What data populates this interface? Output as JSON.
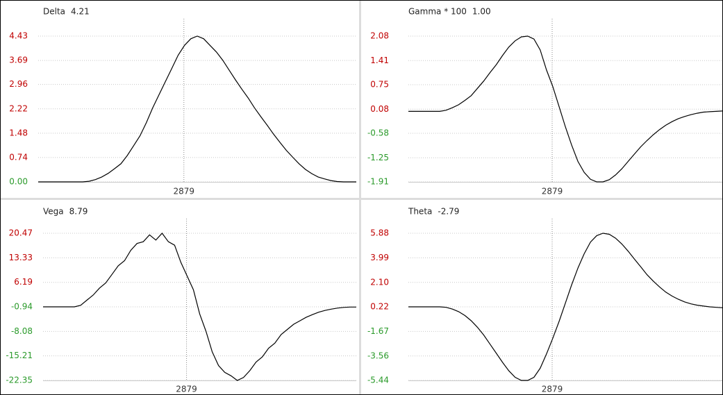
{
  "chart_data": [
    {
      "type": "line",
      "title": "Delta",
      "readout": "4.21",
      "marker_x": 2879,
      "color": "#000000",
      "tick_colors": {
        "positive": "#c00000",
        "nonpositive": "#2a9a2a"
      },
      "grid": true,
      "xlim": [
        2650,
        3150
      ],
      "ylim": [
        0,
        4.43
      ],
      "yticks": [
        {
          "value": 0,
          "label": "0.00"
        },
        0.74,
        1.48,
        2.22,
        2.96,
        3.69,
        4.43
      ],
      "x": [
        2650,
        2660,
        2670,
        2680,
        2690,
        2700,
        2710,
        2720,
        2730,
        2740,
        2750,
        2760,
        2770,
        2780,
        2790,
        2800,
        2810,
        2820,
        2830,
        2840,
        2850,
        2860,
        2870,
        2880,
        2890,
        2900,
        2910,
        2920,
        2930,
        2940,
        2950,
        2960,
        2970,
        2980,
        2990,
        3000,
        3010,
        3020,
        3030,
        3040,
        3050,
        3060,
        3070,
        3080,
        3090,
        3100,
        3110,
        3120,
        3130,
        3140,
        3150
      ],
      "values": [
        0,
        0,
        0,
        0,
        0,
        0,
        0,
        0,
        0.02,
        0.07,
        0.15,
        0.26,
        0.4,
        0.55,
        0.8,
        1.1,
        1.4,
        1.8,
        2.25,
        2.65,
        3.05,
        3.45,
        3.85,
        4.15,
        4.35,
        4.43,
        4.35,
        4.15,
        3.95,
        3.7,
        3.4,
        3.1,
        2.82,
        2.55,
        2.25,
        1.98,
        1.72,
        1.45,
        1.2,
        0.96,
        0.75,
        0.55,
        0.38,
        0.25,
        0.15,
        0.09,
        0.04,
        0.01,
        0,
        0,
        0
      ]
    },
    {
      "type": "line",
      "title": "Gamma * 100",
      "readout": "1.00",
      "marker_x": 2879,
      "color": "#000000",
      "tick_colors": {
        "positive": "#c00000",
        "nonpositive": "#2a9a2a"
      },
      "grid": true,
      "xlim": [
        2650,
        3150
      ],
      "ylim": [
        -1.91,
        2.08
      ],
      "yticks": [
        -1.91,
        -1.25,
        -0.58,
        0.08,
        0.75,
        1.41,
        2.08
      ],
      "x": [
        2650,
        2660,
        2670,
        2680,
        2690,
        2700,
        2710,
        2720,
        2730,
        2740,
        2750,
        2760,
        2770,
        2780,
        2790,
        2800,
        2810,
        2820,
        2830,
        2840,
        2850,
        2860,
        2870,
        2880,
        2890,
        2900,
        2910,
        2920,
        2930,
        2940,
        2950,
        2960,
        2970,
        2980,
        2990,
        3000,
        3010,
        3020,
        3030,
        3040,
        3050,
        3060,
        3070,
        3080,
        3090,
        3100,
        3110,
        3120,
        3130,
        3140,
        3150
      ],
      "values": [
        0.02,
        0.02,
        0.02,
        0.02,
        0.02,
        0.02,
        0.05,
        0.12,
        0.2,
        0.32,
        0.45,
        0.65,
        0.85,
        1.08,
        1.3,
        1.55,
        1.78,
        1.95,
        2.06,
        2.08,
        2.0,
        1.7,
        1.15,
        0.7,
        0.15,
        -0.4,
        -0.9,
        -1.35,
        -1.65,
        -1.84,
        -1.91,
        -1.91,
        -1.85,
        -1.72,
        -1.55,
        -1.35,
        -1.15,
        -0.95,
        -0.78,
        -0.62,
        -0.48,
        -0.36,
        -0.26,
        -0.18,
        -0.12,
        -0.07,
        -0.03,
        0,
        0.01,
        0.02,
        0.03
      ]
    },
    {
      "type": "line",
      "title": "Vega",
      "readout": "8.79",
      "marker_x": 2879,
      "color": "#000000",
      "tick_colors": {
        "positive": "#c00000",
        "nonpositive": "#2a9a2a"
      },
      "grid": true,
      "xlim": [
        2650,
        3150
      ],
      "ylim": [
        -22.35,
        20.47
      ],
      "yticks": [
        -22.35,
        -15.21,
        -8.08,
        -0.94,
        6.19,
        13.33,
        20.47
      ],
      "x": [
        2650,
        2660,
        2670,
        2680,
        2690,
        2700,
        2710,
        2720,
        2730,
        2740,
        2750,
        2760,
        2770,
        2780,
        2790,
        2800,
        2810,
        2820,
        2830,
        2840,
        2850,
        2860,
        2870,
        2880,
        2890,
        2900,
        2910,
        2920,
        2930,
        2940,
        2950,
        2960,
        2970,
        2980,
        2990,
        3000,
        3010,
        3020,
        3030,
        3040,
        3050,
        3060,
        3070,
        3080,
        3090,
        3100,
        3110,
        3120,
        3130,
        3140,
        3150
      ],
      "values": [
        -0.94,
        -0.94,
        -0.94,
        -0.94,
        -0.94,
        -0.94,
        -0.5,
        1.0,
        2.5,
        4.5,
        6.0,
        8.5,
        11.0,
        12.5,
        15.5,
        17.5,
        18.0,
        20.0,
        18.5,
        20.47,
        18.0,
        17.0,
        12.0,
        8.0,
        4.0,
        -3.0,
        -8.0,
        -14.0,
        -18.0,
        -20.0,
        -21.0,
        -22.35,
        -21.5,
        -19.5,
        -17.0,
        -15.5,
        -13.0,
        -11.5,
        -9.0,
        -7.5,
        -6.0,
        -5.0,
        -4.0,
        -3.2,
        -2.5,
        -2.0,
        -1.6,
        -1.3,
        -1.1,
        -1.0,
        -1.0
      ]
    },
    {
      "type": "line",
      "title": "Theta",
      "readout": "-2.79",
      "marker_x": 2879,
      "color": "#000000",
      "tick_colors": {
        "positive": "#c00000",
        "nonpositive": "#2a9a2a"
      },
      "grid": true,
      "xlim": [
        2650,
        3150
      ],
      "ylim": [
        -5.44,
        5.88
      ],
      "yticks": [
        -5.44,
        -3.56,
        -1.67,
        0.22,
        {
          "value": 2.1,
          "label": "2.10"
        },
        3.99,
        5.88
      ],
      "x": [
        2650,
        2660,
        2670,
        2680,
        2690,
        2700,
        2710,
        2720,
        2730,
        2740,
        2750,
        2760,
        2770,
        2780,
        2790,
        2800,
        2810,
        2820,
        2830,
        2840,
        2850,
        2860,
        2870,
        2880,
        2890,
        2900,
        2910,
        2920,
        2930,
        2940,
        2950,
        2960,
        2970,
        2980,
        2990,
        3000,
        3010,
        3020,
        3030,
        3040,
        3050,
        3060,
        3070,
        3080,
        3090,
        3100,
        3110,
        3120,
        3130,
        3140,
        3150
      ],
      "values": [
        0.22,
        0.22,
        0.22,
        0.22,
        0.22,
        0.22,
        0.18,
        0.05,
        -0.15,
        -0.45,
        -0.85,
        -1.35,
        -1.95,
        -2.65,
        -3.35,
        -4.05,
        -4.7,
        -5.2,
        -5.44,
        -5.44,
        -5.2,
        -4.5,
        -3.4,
        -2.2,
        -0.9,
        0.5,
        1.9,
        3.2,
        4.3,
        5.2,
        5.7,
        5.88,
        5.8,
        5.5,
        5.05,
        4.5,
        3.9,
        3.3,
        2.7,
        2.2,
        1.75,
        1.35,
        1.05,
        0.8,
        0.6,
        0.45,
        0.35,
        0.28,
        0.22,
        0.18,
        0.15
      ]
    }
  ]
}
